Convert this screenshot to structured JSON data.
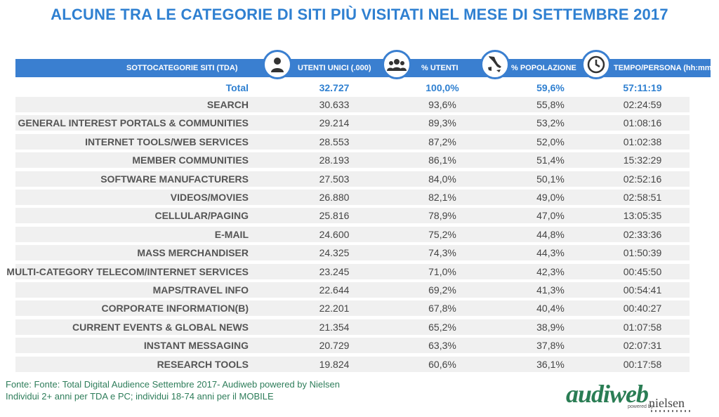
{
  "title": "ALCUNE TRA LE CATEGORIE DI SITI PIÙ VISITATI NEL MESE DI SETTEMBRE 2017",
  "columns": {
    "category": "SOTTOCATEGORIE SITI  (TDA)",
    "users": "UTENTI UNICI (.000)",
    "pct_users": "% UTENTI",
    "pct_pop": "% POPOLAZIONE",
    "time": "TEMPO/PERSONA (hh:mm)"
  },
  "total": {
    "name": "Total",
    "users": "32.727",
    "pct_users": "100,0%",
    "pct_pop": "59,6%",
    "time": "57:11:19"
  },
  "rows": [
    {
      "name": "SEARCH",
      "users": "30.633",
      "pct_users": "93,6%",
      "pct_pop": "55,8%",
      "time": "02:24:59"
    },
    {
      "name": "GENERAL INTEREST PORTALS & COMMUNITIES",
      "users": "29.214",
      "pct_users": "89,3%",
      "pct_pop": "53,2%",
      "time": "01:08:16"
    },
    {
      "name": "INTERNET TOOLS/WEB SERVICES",
      "users": "28.553",
      "pct_users": "87,2%",
      "pct_pop": "52,0%",
      "time": "01:02:38"
    },
    {
      "name": "MEMBER COMMUNITIES",
      "users": "28.193",
      "pct_users": "86,1%",
      "pct_pop": "51,4%",
      "time": "15:32:29"
    },
    {
      "name": "SOFTWARE MANUFACTURERS",
      "users": "27.503",
      "pct_users": "84,0%",
      "pct_pop": "50,1%",
      "time": "02:52:16"
    },
    {
      "name": "VIDEOS/MOVIES",
      "users": "26.880",
      "pct_users": "82,1%",
      "pct_pop": "49,0%",
      "time": "02:58:51"
    },
    {
      "name": "CELLULAR/PAGING",
      "users": "25.816",
      "pct_users": "78,9%",
      "pct_pop": "47,0%",
      "time": "13:05:35"
    },
    {
      "name": "E-MAIL",
      "users": "24.600",
      "pct_users": "75,2%",
      "pct_pop": "44,8%",
      "time": "02:33:36"
    },
    {
      "name": "MASS MERCHANDISER",
      "users": "24.325",
      "pct_users": "74,3%",
      "pct_pop": "44,3%",
      "time": "01:50:39"
    },
    {
      "name": "MULTI-CATEGORY TELECOM/INTERNET SERVICES",
      "users": "23.245",
      "pct_users": "71,0%",
      "pct_pop": "42,3%",
      "time": "00:45:50"
    },
    {
      "name": "MAPS/TRAVEL INFO",
      "users": "22.644",
      "pct_users": "69,2%",
      "pct_pop": "41,3%",
      "time": "00:54:41"
    },
    {
      "name": "CORPORATE INFORMATION(B)",
      "users": "22.201",
      "pct_users": "67,8%",
      "pct_pop": "40,4%",
      "time": "00:40:27"
    },
    {
      "name": "CURRENT EVENTS & GLOBAL NEWS",
      "users": "21.354",
      "pct_users": "65,2%",
      "pct_pop": "38,9%",
      "time": "01:07:58"
    },
    {
      "name": "INSTANT MESSAGING",
      "users": "20.729",
      "pct_users": "63,3%",
      "pct_pop": "37,8%",
      "time": "02:07:31"
    },
    {
      "name": "RESEARCH TOOLS",
      "users": "19.824",
      "pct_users": "60,6%",
      "pct_pop": "36,1%",
      "time": "00:17:58"
    }
  ],
  "footer": {
    "line1": "Fonte: Fonte: Total Digital Audience Settembre 2017- Audiweb powered by Nielsen",
    "line2": "Individui 2+ anni per TDA e PC; individui 18-74 anni per il MOBILE"
  },
  "logo": {
    "brand": "audiweb",
    "powered": "powered by",
    "partner": "nielsen"
  },
  "icons": [
    "user-icon",
    "users-group-icon",
    "italy-map-icon",
    "clock-icon"
  ],
  "colors": {
    "accent": "#3a7fd0",
    "title": "#2f80d1",
    "row_bg": "#f0f0f0",
    "footer": "#2e7d5a"
  }
}
